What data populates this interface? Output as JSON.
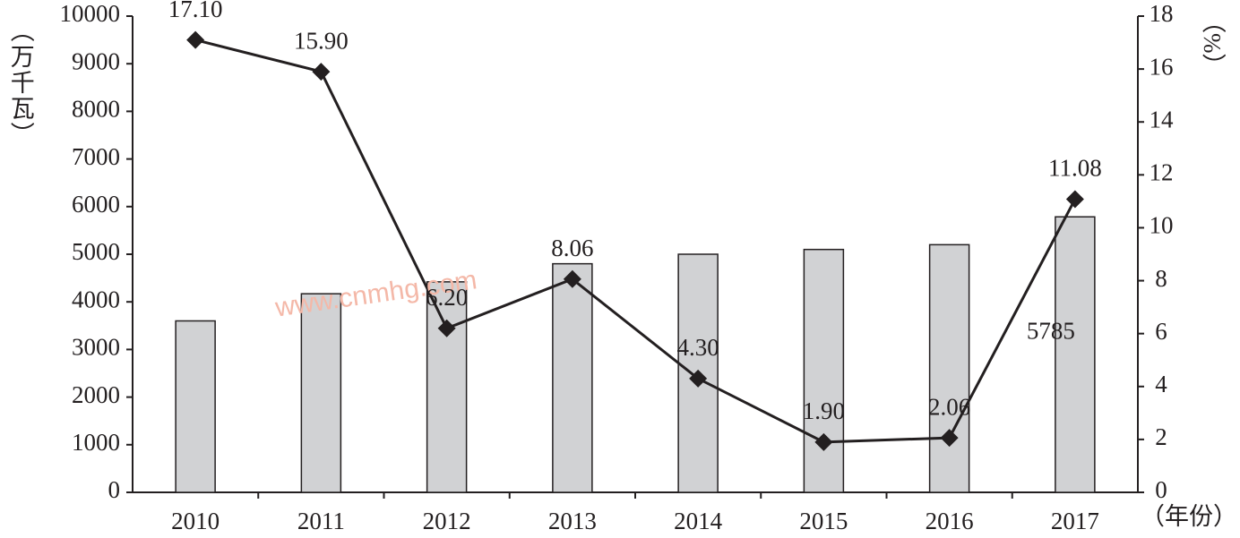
{
  "chart_data": {
    "type": "bar_line",
    "categories": [
      "2010",
      "2011",
      "2012",
      "2013",
      "2014",
      "2015",
      "2016",
      "2017"
    ],
    "series": [
      {
        "type": "bar",
        "color": "#d1d2d4",
        "values": [
          3600,
          4170,
          4420,
          4800,
          5000,
          5100,
          5200,
          5785
        ],
        "value_labels": [
          null,
          null,
          null,
          null,
          null,
          null,
          null,
          "5785"
        ]
      },
      {
        "type": "line",
        "axis": "y2",
        "color": "#231f20",
        "values": [
          17.1,
          15.9,
          6.2,
          8.06,
          4.3,
          1.9,
          2.06,
          11.08
        ],
        "value_labels": [
          "17.10",
          "15.90",
          "6.20",
          "8.06",
          "4.30",
          "1.90",
          "2.06",
          "11.08"
        ]
      }
    ],
    "ylim": [
      0,
      10000
    ],
    "yticks": [
      0,
      1000,
      2000,
      3000,
      4000,
      5000,
      6000,
      7000,
      8000,
      9000,
      10000
    ],
    "y2lim": [
      0,
      18
    ],
    "y2ticks": [
      0,
      2,
      4,
      6,
      8,
      10,
      12,
      14,
      16,
      18
    ],
    "ylabel": "（万千瓦）",
    "y2label": "（%）",
    "xlabel": "（年份）",
    "watermark": "www.cnmhg.com"
  }
}
